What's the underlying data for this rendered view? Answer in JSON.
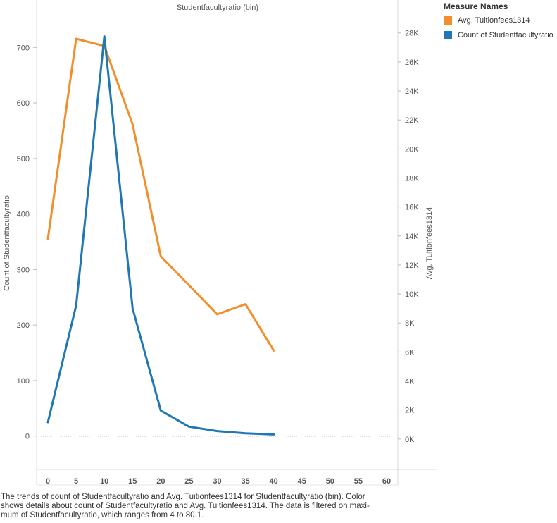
{
  "chart_data": {
    "type": "line",
    "title": "Studentfacultyratio (bin)",
    "x_ticks": [
      0,
      5,
      10,
      15,
      20,
      25,
      30,
      35,
      40,
      45,
      50,
      55,
      60
    ],
    "x_range": [
      -2,
      62
    ],
    "left_axis": {
      "label": "Count of Studentfacultyratio",
      "range": [
        -60,
        760
      ],
      "ticks": [
        0,
        100,
        200,
        300,
        400,
        500,
        600,
        700
      ]
    },
    "right_axis": {
      "label": "Avg. Tuitionfees1314",
      "range": [
        -2100,
        29300
      ],
      "ticks": [
        0,
        2000,
        4000,
        6000,
        8000,
        10000,
        12000,
        14000,
        16000,
        18000,
        20000,
        22000,
        24000,
        26000,
        28000
      ],
      "tick_labels": [
        "0K",
        "2K",
        "4K",
        "6K",
        "8K",
        "10K",
        "12K",
        "14K",
        "16K",
        "18K",
        "20K",
        "22K",
        "24K",
        "26K",
        "28K"
      ]
    },
    "series": [
      {
        "name": "Avg. Tuitionfees1314",
        "axis": "right",
        "color": "#F28E2B",
        "x": [
          0,
          5,
          10,
          15,
          20,
          25,
          30,
          35,
          40
        ],
        "values": [
          13800,
          27600,
          27100,
          21700,
          12600,
          10600,
          8600,
          9300,
          6100
        ]
      },
      {
        "name": "Count of Studentfacultyratio",
        "axis": "left",
        "color": "#1F77B4",
        "x": [
          0,
          5,
          10,
          15,
          20,
          25,
          30,
          35,
          40
        ],
        "values": [
          25,
          235,
          720,
          230,
          46,
          17,
          9,
          5,
          3
        ]
      }
    ],
    "legend": {
      "title": "Measure Names",
      "position": "top-right",
      "entries": [
        {
          "label": "Avg. Tuitionfees1314",
          "color": "#F28E2B"
        },
        {
          "label": "Count of Studentfacultyratio",
          "color": "#1F77B4"
        }
      ]
    },
    "grid": false,
    "zero_line": "dotted"
  },
  "caption_lines": [
    "The trends of count of Studentfacultyratio and Avg. Tuitionfees1314 for Studentfacultyratio (bin).  Color",
    "shows details about count of Studentfacultyratio and Avg. Tuitionfees1314. The data is filtered on maxi-",
    "mum of  Studentfacultyratio, which ranges from 4 to 80.1."
  ]
}
